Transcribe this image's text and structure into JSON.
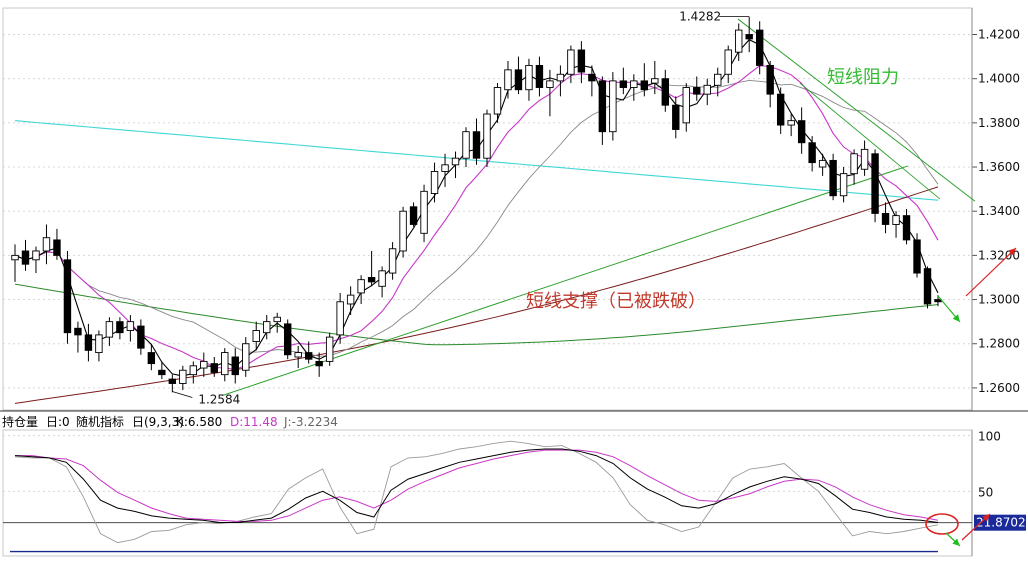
{
  "chart_data": {
    "type": "candlestick",
    "price_axis": {
      "range": [
        1.25,
        1.432
      ],
      "ticks": [
        "1.4200",
        "1.4000",
        "1.3800",
        "1.3600",
        "1.3400",
        "1.3200",
        "1.3000",
        "1.2800",
        "1.2600"
      ],
      "tick_values": [
        1.42,
        1.4,
        1.38,
        1.36,
        1.34,
        1.32,
        1.3,
        1.28,
        1.26
      ]
    },
    "annotations": {
      "high_label": "1.4282",
      "low_label": "1.2584",
      "resistance_label": "短线阻力",
      "support_label": "短线支撑（已被跌破）"
    },
    "candles": [
      [
        1.318,
        1.325,
        1.308,
        1.32
      ],
      [
        1.322,
        1.327,
        1.313,
        1.316
      ],
      [
        1.318,
        1.324,
        1.312,
        1.322
      ],
      [
        1.322,
        1.334,
        1.316,
        1.328
      ],
      [
        1.327,
        1.332,
        1.318,
        1.32
      ],
      [
        1.318,
        1.322,
        1.28,
        1.285
      ],
      [
        1.287,
        1.29,
        1.276,
        1.284
      ],
      [
        1.284,
        1.289,
        1.272,
        1.277
      ],
      [
        1.276,
        1.286,
        1.272,
        1.284
      ],
      [
        1.283,
        1.292,
        1.279,
        1.29
      ],
      [
        1.29,
        1.292,
        1.282,
        1.285
      ],
      [
        1.286,
        1.293,
        1.281,
        1.29
      ],
      [
        1.288,
        1.291,
        1.275,
        1.278
      ],
      [
        1.276,
        1.28,
        1.268,
        1.271
      ],
      [
        1.268,
        1.272,
        1.264,
        1.266
      ],
      [
        1.264,
        1.266,
        1.258,
        1.262
      ],
      [
        1.262,
        1.27,
        1.259,
        1.268
      ],
      [
        1.266,
        1.272,
        1.262,
        1.27
      ],
      [
        1.269,
        1.276,
        1.265,
        1.272
      ],
      [
        1.271,
        1.274,
        1.265,
        1.267
      ],
      [
        1.266,
        1.278,
        1.263,
        1.276
      ],
      [
        1.274,
        1.278,
        1.262,
        1.266
      ],
      [
        1.268,
        1.283,
        1.265,
        1.28
      ],
      [
        1.281,
        1.29,
        1.277,
        1.286
      ],
      [
        1.285,
        1.293,
        1.282,
        1.29
      ],
      [
        1.29,
        1.294,
        1.285,
        1.292
      ],
      [
        1.289,
        1.291,
        1.273,
        1.275
      ],
      [
        1.274,
        1.279,
        1.269,
        1.276
      ],
      [
        1.276,
        1.281,
        1.271,
        1.273
      ],
      [
        1.272,
        1.276,
        1.265,
        1.27
      ],
      [
        1.272,
        1.285,
        1.27,
        1.283
      ],
      [
        1.284,
        1.303,
        1.28,
        1.299
      ],
      [
        1.298,
        1.306,
        1.293,
        1.302
      ],
      [
        1.303,
        1.311,
        1.298,
        1.309
      ],
      [
        1.31,
        1.322,
        1.306,
        1.308
      ],
      [
        1.306,
        1.315,
        1.301,
        1.313
      ],
      [
        1.312,
        1.326,
        1.309,
        1.323
      ],
      [
        1.322,
        1.342,
        1.319,
        1.34
      ],
      [
        1.342,
        1.344,
        1.333,
        1.334
      ],
      [
        1.33,
        1.352,
        1.326,
        1.349
      ],
      [
        1.348,
        1.362,
        1.344,
        1.358
      ],
      [
        1.358,
        1.366,
        1.351,
        1.361
      ],
      [
        1.361,
        1.367,
        1.355,
        1.364
      ],
      [
        1.364,
        1.378,
        1.36,
        1.376
      ],
      [
        1.376,
        1.382,
        1.361,
        1.364
      ],
      [
        1.364,
        1.386,
        1.36,
        1.384
      ],
      [
        1.384,
        1.398,
        1.38,
        1.396
      ],
      [
        1.395,
        1.408,
        1.391,
        1.404
      ],
      [
        1.404,
        1.41,
        1.393,
        1.395
      ],
      [
        1.395,
        1.409,
        1.39,
        1.406
      ],
      [
        1.406,
        1.41,
        1.392,
        1.396
      ],
      [
        1.396,
        1.404,
        1.383,
        1.399
      ],
      [
        1.399,
        1.406,
        1.392,
        1.402
      ],
      [
        1.402,
        1.415,
        1.398,
        1.413
      ],
      [
        1.413,
        1.417,
        1.398,
        1.403
      ],
      [
        1.402,
        1.406,
        1.392,
        1.399
      ],
      [
        1.399,
        1.401,
        1.37,
        1.376
      ],
      [
        1.376,
        1.403,
        1.372,
        1.399
      ],
      [
        1.399,
        1.405,
        1.393,
        1.396
      ],
      [
        1.396,
        1.402,
        1.39,
        1.399
      ],
      [
        1.399,
        1.407,
        1.392,
        1.395
      ],
      [
        1.398,
        1.408,
        1.393,
        1.4
      ],
      [
        1.4,
        1.404,
        1.385,
        1.388
      ],
      [
        1.388,
        1.392,
        1.373,
        1.377
      ],
      [
        1.38,
        1.398,
        1.376,
        1.396
      ],
      [
        1.396,
        1.401,
        1.39,
        1.393
      ],
      [
        1.393,
        1.4,
        1.388,
        1.397
      ],
      [
        1.397,
        1.405,
        1.392,
        1.402
      ],
      [
        1.402,
        1.415,
        1.398,
        1.413
      ],
      [
        1.412,
        1.425,
        1.408,
        1.422
      ],
      [
        1.42,
        1.428,
        1.412,
        1.418
      ],
      [
        1.422,
        1.426,
        1.402,
        1.406
      ],
      [
        1.406,
        1.408,
        1.387,
        1.393
      ],
      [
        1.393,
        1.396,
        1.375,
        1.379
      ],
      [
        1.379,
        1.384,
        1.374,
        1.381
      ],
      [
        1.381,
        1.387,
        1.366,
        1.371
      ],
      [
        1.371,
        1.374,
        1.358,
        1.362
      ],
      [
        1.36,
        1.366,
        1.356,
        1.363
      ],
      [
        1.363,
        1.366,
        1.345,
        1.347
      ],
      [
        1.347,
        1.36,
        1.344,
        1.357
      ],
      [
        1.357,
        1.368,
        1.352,
        1.366
      ],
      [
        1.359,
        1.372,
        1.356,
        1.368
      ],
      [
        1.366,
        1.368,
        1.335,
        1.339
      ],
      [
        1.339,
        1.344,
        1.33,
        1.334
      ],
      [
        1.334,
        1.34,
        1.328,
        1.338
      ],
      [
        1.338,
        1.341,
        1.325,
        1.327
      ],
      [
        1.327,
        1.33,
        1.31,
        1.312
      ],
      [
        1.314,
        1.315,
        1.296,
        1.298
      ],
      [
        1.3,
        1.302,
        1.297,
        1.299
      ]
    ],
    "moving_averages": [
      {
        "color": "#000000"
      },
      {
        "color": "#c837c8"
      },
      {
        "color": "#888888"
      },
      {
        "color": "#2b8a2b"
      },
      {
        "color": "#40d6d6"
      },
      {
        "color": "#7a1c1c"
      }
    ],
    "lower_panel": {
      "indicator_labels": [
        {
          "text": "持仓量",
          "color": "#000000"
        },
        {
          "text": "日:0",
          "color": "#000000"
        },
        {
          "text": "随机指标",
          "color": "#000000"
        },
        {
          "text": "日(9,3,3)",
          "color": "#000000"
        },
        {
          "text": "K:6.580",
          "color": "#000000"
        },
        {
          "text": "D:11.48",
          "color": "#c837c8"
        },
        {
          "text": "J:-3.2234",
          "color": "#666666"
        }
      ],
      "ticks": [
        "100",
        "50"
      ],
      "tick_values": [
        100,
        50
      ],
      "range": [
        -8,
        105
      ],
      "current_value": "21.8702",
      "current_value_number": 21.8702,
      "k": [
        82,
        81,
        80,
        76,
        61,
        42,
        35,
        32,
        28,
        26,
        25,
        24,
        22,
        22,
        24,
        26,
        34,
        44,
        50,
        42,
        31,
        27,
        51,
        61,
        66,
        71,
        76,
        79,
        82,
        85,
        87,
        88,
        88,
        86,
        82,
        75,
        62,
        52,
        45,
        37,
        35,
        39,
        47,
        54,
        59,
        63,
        61,
        57,
        46,
        34,
        31,
        27,
        25,
        24,
        22
      ],
      "d": [
        82,
        82,
        80,
        79,
        73,
        60,
        49,
        42,
        35,
        30,
        26,
        25,
        24,
        23,
        23,
        24,
        28,
        35,
        42,
        45,
        41,
        35,
        42,
        52,
        59,
        65,
        71,
        75,
        79,
        82,
        85,
        87,
        87,
        87,
        85,
        81,
        73,
        64,
        56,
        48,
        42,
        41,
        44,
        48,
        54,
        59,
        61,
        60,
        54,
        45,
        38,
        33,
        29,
        27,
        24
      ],
      "j": [
        81,
        80,
        80,
        72,
        45,
        12,
        4,
        7,
        14,
        15,
        20,
        22,
        21,
        23,
        27,
        30,
        52,
        62,
        70,
        36,
        12,
        16,
        72,
        80,
        81,
        84,
        88,
        90,
        93,
        95,
        93,
        90,
        91,
        84,
        76,
        62,
        38,
        24,
        20,
        14,
        18,
        40,
        62,
        70,
        72,
        75,
        62,
        50,
        30,
        10,
        14,
        12,
        14,
        17,
        20
      ]
    }
  }
}
